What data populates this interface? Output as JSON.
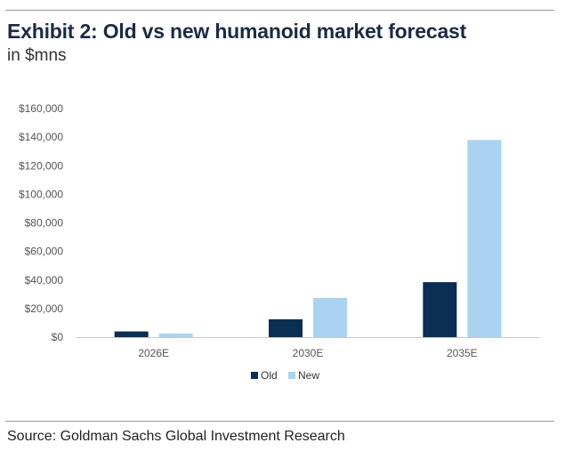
{
  "header": {
    "title": "Exhibit 2: Old vs new humanoid market forecast",
    "subtitle": "in $mns"
  },
  "footer": {
    "source": "Source: Goldman Sachs Global Investment Research"
  },
  "colors": {
    "old": "#0b2e53",
    "new": "#a9d3f0",
    "title": "#1a2b45"
  },
  "chart_data": {
    "type": "bar",
    "title": "Exhibit 2: Old vs new humanoid market forecast",
    "subtitle": "in $mns",
    "categories": [
      "2026E",
      "2030E",
      "2035E"
    ],
    "series": [
      {
        "name": "Old",
        "color": "#0b2e53",
        "values": [
          4000,
          12500,
          38500
        ]
      },
      {
        "name": "New",
        "color": "#a9d3f0",
        "values": [
          2500,
          27500,
          138000
        ]
      }
    ],
    "ylim": [
      0,
      160000
    ],
    "yticks": [
      0,
      20000,
      40000,
      60000,
      80000,
      100000,
      120000,
      140000,
      160000
    ],
    "ytick_labels": [
      "$0",
      "$20,000",
      "$40,000",
      "$60,000",
      "$80,000",
      "$100,000",
      "$120,000",
      "$140,000",
      "$160,000"
    ],
    "grid": false,
    "legend": "bottom-center"
  }
}
